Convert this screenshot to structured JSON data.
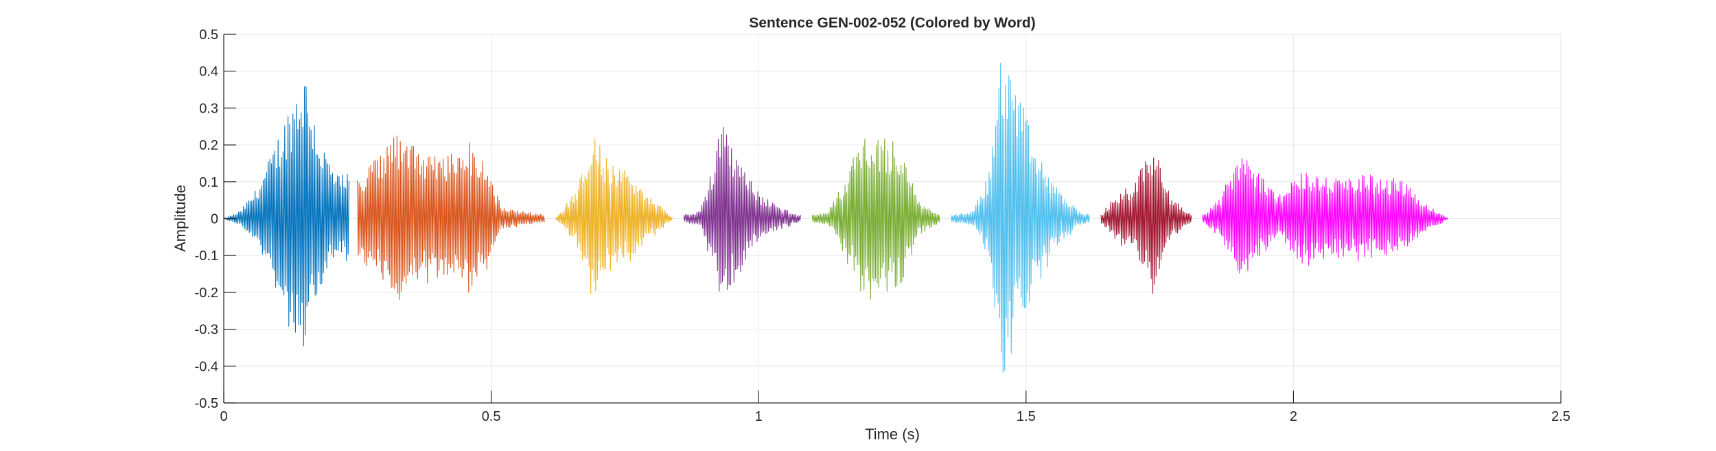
{
  "chart_data": {
    "type": "line",
    "title": "Sentence GEN-002-052 (Colored by Word)",
    "xlabel": "Time (s)",
    "ylabel": "Amplitude",
    "xlim": [
      0,
      2.5
    ],
    "ylim": [
      -0.5,
      0.5
    ],
    "xticks": [
      0,
      0.5,
      1,
      1.5,
      2,
      2.5
    ],
    "xtick_labels": [
      "0",
      "0.5",
      "1",
      "1.5",
      "2",
      "2.5"
    ],
    "yticks": [
      0.5,
      0.4,
      0.3,
      0.2,
      0.1,
      0,
      -0.1,
      -0.2,
      -0.3,
      -0.4,
      -0.5
    ],
    "ytick_labels": [
      "0.5",
      "0.4",
      "0.3",
      "0.2",
      "0.1",
      "0",
      "-0.1",
      "-0.2",
      "-0.3",
      "-0.4",
      "-0.5"
    ],
    "grid": true,
    "series": [
      {
        "color": "#0072BD",
        "x_start": 0.0,
        "x_end": 0.235,
        "envelope": [
          [
            0.0,
            0.0
          ],
          [
            0.03,
            0.02
          ],
          [
            0.06,
            0.08
          ],
          [
            0.09,
            0.18
          ],
          [
            0.12,
            0.3
          ],
          [
            0.15,
            0.42
          ],
          [
            0.18,
            0.22
          ],
          [
            0.21,
            0.12
          ],
          [
            0.235,
            0.12
          ]
        ]
      },
      {
        "color": "#D95319",
        "x_start": 0.25,
        "x_end": 0.6,
        "envelope": [
          [
            0.25,
            0.12
          ],
          [
            0.3,
            0.18
          ],
          [
            0.32,
            0.25
          ],
          [
            0.36,
            0.19
          ],
          [
            0.4,
            0.17
          ],
          [
            0.44,
            0.18
          ],
          [
            0.47,
            0.22
          ],
          [
            0.52,
            0.03
          ],
          [
            0.6,
            0.01
          ]
        ]
      },
      {
        "color": "#EDB120",
        "x_start": 0.62,
        "x_end": 0.84,
        "envelope": [
          [
            0.62,
            0.0
          ],
          [
            0.66,
            0.08
          ],
          [
            0.69,
            0.24
          ],
          [
            0.72,
            0.15
          ],
          [
            0.76,
            0.13
          ],
          [
            0.8,
            0.06
          ],
          [
            0.84,
            0.0
          ]
        ]
      },
      {
        "color": "#7E2F8E",
        "x_start": 0.86,
        "x_end": 1.08,
        "envelope": [
          [
            0.86,
            0.01
          ],
          [
            0.89,
            0.02
          ],
          [
            0.91,
            0.12
          ],
          [
            0.93,
            0.26
          ],
          [
            0.96,
            0.17
          ],
          [
            1.0,
            0.07
          ],
          [
            1.04,
            0.03
          ],
          [
            1.08,
            0.01
          ]
        ]
      },
      {
        "color": "#77AC30",
        "x_start": 1.1,
        "x_end": 1.34,
        "envelope": [
          [
            1.1,
            0.01
          ],
          [
            1.13,
            0.02
          ],
          [
            1.16,
            0.1
          ],
          [
            1.19,
            0.22
          ],
          [
            1.23,
            0.22
          ],
          [
            1.27,
            0.21
          ],
          [
            1.3,
            0.05
          ],
          [
            1.34,
            0.01
          ]
        ]
      },
      {
        "color": "#4DBEEE",
        "x_start": 1.36,
        "x_end": 1.62,
        "envelope": [
          [
            1.36,
            0.01
          ],
          [
            1.4,
            0.02
          ],
          [
            1.43,
            0.12
          ],
          [
            1.455,
            0.47
          ],
          [
            1.48,
            0.38
          ],
          [
            1.52,
            0.18
          ],
          [
            1.56,
            0.08
          ],
          [
            1.6,
            0.02
          ],
          [
            1.62,
            0.01
          ]
        ]
      },
      {
        "color": "#A2142F",
        "x_start": 1.64,
        "x_end": 1.81,
        "envelope": [
          [
            1.64,
            0.01
          ],
          [
            1.66,
            0.05
          ],
          [
            1.7,
            0.1
          ],
          [
            1.74,
            0.22
          ],
          [
            1.77,
            0.06
          ],
          [
            1.81,
            0.01
          ]
        ]
      },
      {
        "color": "#FF00FF",
        "x_start": 1.83,
        "x_end": 2.29,
        "envelope": [
          [
            1.83,
            0.01
          ],
          [
            1.86,
            0.05
          ],
          [
            1.9,
            0.18
          ],
          [
            1.93,
            0.14
          ],
          [
            1.97,
            0.06
          ],
          [
            2.02,
            0.13
          ],
          [
            2.08,
            0.11
          ],
          [
            2.14,
            0.12
          ],
          [
            2.2,
            0.11
          ],
          [
            2.24,
            0.05
          ],
          [
            2.29,
            0.0
          ]
        ]
      }
    ]
  }
}
